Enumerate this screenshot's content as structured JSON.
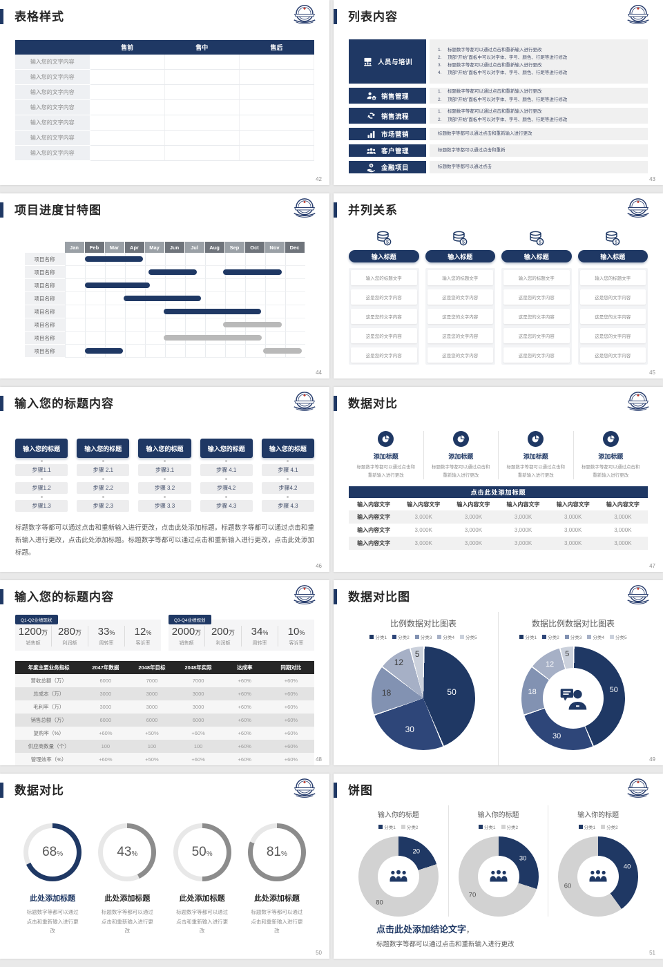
{
  "colors": {
    "navy": "#1f3864",
    "gantt_gray_bar": "#b9b9b9",
    "table_header_dark": "#262626",
    "pie_palette": [
      "#1f3864",
      "#2e4679",
      "#8292b2",
      "#a6b0c6",
      "#cbd1dc"
    ],
    "donut_gray": "#d2d2d2",
    "gauge_gray": "#8c8c8c",
    "gauge_track": "#e8e8e8"
  },
  "slides": {
    "s42": {
      "number": "42",
      "title": "表格样式",
      "table": {
        "headers": [
          "",
          "售前",
          "售中",
          "售后"
        ],
        "row_label": "输入您的文字内容",
        "row_count": 7
      }
    },
    "s43": {
      "number": "43",
      "title": "列表内容",
      "items": [
        {
          "icon": "training-icon",
          "label": "人员与培训",
          "numbered": true,
          "lines": [
            "标题数字等都可以通过点击和重新输入进行更改",
            "顶部“开始”面板中可以对字体、字号、颜色、行距等进行修改",
            "标题数字等都可以通过点击和重新输入进行更改",
            "顶部“开始”面板中可以对字体、字号、颜色、行距等进行修改"
          ]
        },
        {
          "icon": "sales-management-icon",
          "label": "销售管理",
          "numbered": true,
          "lines": [
            "标题数字等都可以通过点击和重新输入进行更改",
            "顶部“开始”面板中可以对字体、字号、颜色、行距等进行修改"
          ]
        },
        {
          "icon": "sales-process-icon",
          "label": "销售流程",
          "numbered": true,
          "lines": [
            "标题数字等都可以通过点击和重新输入进行更改",
            "顶部“开始”面板中可以对字体、字号、颜色、行距等进行修改"
          ]
        },
        {
          "icon": "marketing-icon",
          "label": "市场营销",
          "numbered": false,
          "lines": [
            "标题数字等都可以通过点击和重新输入进行更改"
          ]
        },
        {
          "icon": "customer-management-icon",
          "label": "客户管理",
          "numbered": false,
          "lines": [
            "标题数字等都可以通过点击和重新"
          ]
        },
        {
          "icon": "finance-icon",
          "label": "金融项目",
          "numbered": false,
          "lines": [
            "标题数字等都可以通过点击"
          ]
        }
      ]
    },
    "s44": {
      "number": "44",
      "title": "项目进度甘特图",
      "chart_data": {
        "type": "gantt",
        "months": [
          "Jan",
          "Feb",
          "Mar",
          "Apr",
          "May",
          "Jun",
          "Jul",
          "Aug",
          "Sep",
          "Oct",
          "Nov",
          "Dec"
        ],
        "row_label": "项目名称",
        "row_count": 8,
        "bars": [
          {
            "row": 0,
            "start": 1.0,
            "end": 3.9,
            "color": "navy"
          },
          {
            "row": 1,
            "start": 4.2,
            "end": 6.6,
            "color": "navy"
          },
          {
            "row": 1,
            "start": 7.9,
            "end": 10.85,
            "color": "navy"
          },
          {
            "row": 2,
            "start": 1.0,
            "end": 4.25,
            "color": "navy"
          },
          {
            "row": 3,
            "start": 2.95,
            "end": 6.8,
            "color": "navy"
          },
          {
            "row": 4,
            "start": 4.95,
            "end": 9.8,
            "color": "navy"
          },
          {
            "row": 5,
            "start": 7.9,
            "end": 10.85,
            "color": "gray"
          },
          {
            "row": 6,
            "start": 4.95,
            "end": 9.85,
            "color": "gray"
          },
          {
            "row": 7,
            "start": 1.0,
            "end": 2.9,
            "color": "navy"
          },
          {
            "row": 7,
            "start": 9.9,
            "end": 11.85,
            "color": "gray"
          }
        ]
      }
    },
    "s45": {
      "number": "45",
      "title": "并列关系",
      "columns": [
        {
          "icon": "coins-icon",
          "pill": "输入标题",
          "cards": [
            "输入您的标题文字",
            "这是您的文字内容",
            "这是您的文字内容",
            "这是您的文字内容",
            "这是您的文字内容"
          ]
        },
        {
          "icon": "coins-icon",
          "pill": "输入标题",
          "cards": [
            "输入您的标题文字",
            "这是您的文字内容",
            "这是您的文字内容",
            "这是您的文字内容",
            "这是您的文字内容"
          ]
        },
        {
          "icon": "coins-icon",
          "pill": "输入标题",
          "cards": [
            "输入您的标题文字",
            "这是您的文字内容",
            "这是您的文字内容",
            "这是您的文字内容",
            "这是您的文字内容"
          ]
        },
        {
          "icon": "coins-icon",
          "pill": "输入标题",
          "cards": [
            "输入您的标题文字",
            "这是您的文字内容",
            "这是您的文字内容",
            "这是您的文字内容",
            "这是您的文字内容"
          ]
        }
      ]
    },
    "s46": {
      "number": "46",
      "title": "输入您的标题内容",
      "columns": [
        {
          "header": "输入您的标题",
          "steps": [
            "步骤1.1",
            "步骤1.2",
            "步骤1.3"
          ]
        },
        {
          "header": "输入您的标题",
          "steps": [
            "步骤 2.1",
            "步骤 2.2",
            "步骤 2.3"
          ]
        },
        {
          "header": "输入您的标题",
          "steps": [
            "步骤3.1",
            "步骤 3.2",
            "步骤 3.3"
          ]
        },
        {
          "header": "输入您的标题",
          "steps": [
            "步骤 4.1",
            "步骤4.2",
            "步骤 4.3"
          ]
        },
        {
          "header": "输入您的标题",
          "steps": [
            "步骤 4.1",
            "步骤4.2",
            "步骤 4.3"
          ]
        }
      ],
      "paragraph": "标题数字等都可以通过点击和重新输入进行更改，点击此处添加标题。标题数字等都可以通过点击和重新输入进行更改，点击此处添加标题。标题数字等都可以通过点击和重新输入进行更改，点击此处添加标题。"
    },
    "s47": {
      "number": "47",
      "title": "数据对比",
      "features": [
        {
          "icon": "pie-chart-icon",
          "title": "添加标题",
          "desc": "标题数字等都可以通过点击和重新输入进行更改"
        },
        {
          "icon": "pie-chart-icon",
          "title": "添加标题",
          "desc": "标题数字等都可以通过点击和重新输入进行更改"
        },
        {
          "icon": "pie-chart-icon",
          "title": "添加标题",
          "desc": "标题数字等都可以通过点击和重新输入进行更改"
        },
        {
          "icon": "pie-chart-icon",
          "title": "添加标题",
          "desc": "标题数字等都可以通过点击和重新输入进行更改"
        }
      ],
      "banner": "点击此处添加标题",
      "table": {
        "headers": [
          "输入内容文字",
          "输入内容文字",
          "输入内容文字",
          "输入内容文字",
          "输入内容文字",
          "输入内容文字"
        ],
        "rows": [
          [
            "输入内容文字",
            "3,000K",
            "3,000K",
            "3,000K",
            "3,000K",
            "3,000K"
          ],
          [
            "输入内容文字",
            "3,000K",
            "3,000K",
            "3,000K",
            "3,000K",
            "3,000K"
          ],
          [
            "输入内容文字",
            "3,000K",
            "3,000K",
            "3,000K",
            "3,000K",
            "3,000K"
          ]
        ]
      }
    },
    "s48": {
      "number": "48",
      "title": "输入您的标题内容",
      "panels": [
        {
          "tag": "Q1-Q2业绩现状",
          "stats": [
            {
              "value": "1200",
              "unit": "万",
              "label": "销售额"
            },
            {
              "value": "280",
              "unit": "万",
              "label": "利润额"
            },
            {
              "value": "33",
              "unit": "%",
              "label": "周转率"
            },
            {
              "value": "12",
              "unit": "%",
              "label": "客诉率"
            }
          ]
        },
        {
          "tag": "Q3-Q4业绩规划",
          "stats": [
            {
              "value": "2000",
              "unit": "万",
              "label": "销售额"
            },
            {
              "value": "200",
              "unit": "万",
              "label": "利润额"
            },
            {
              "value": "34",
              "unit": "%",
              "label": "周转率"
            },
            {
              "value": "10",
              "unit": "%",
              "label": "客诉率"
            }
          ]
        }
      ],
      "table": {
        "headers": [
          "年度主要业务指标",
          "2047年数据",
          "2048年目标",
          "2048年实际",
          "达成率",
          "同期对比"
        ],
        "rows": [
          [
            "营收总额（万）",
            "6000",
            "7000",
            "7000",
            "+60%",
            "+60%"
          ],
          [
            "总成本（万）",
            "3000",
            "3000",
            "3000",
            "+60%",
            "+60%"
          ],
          [
            "毛利率（万）",
            "3000",
            "3000",
            "3000",
            "+60%",
            "+60%"
          ],
          [
            "销售总额（万）",
            "6000",
            "6000",
            "6000",
            "+60%",
            "+60%"
          ],
          [
            "复购率（%）",
            "+60%",
            "+50%",
            "+60%",
            "+60%",
            "+60%"
          ],
          [
            "供应商数量（个）",
            "100",
            "100",
            "100",
            "+60%",
            "+60%"
          ],
          [
            "管理效率（%）",
            "+60%",
            "+50%",
            "+60%",
            "+60%",
            "+60%"
          ]
        ]
      }
    },
    "s49": {
      "number": "49",
      "title": "数据对比图",
      "charts": [
        {
          "type": "pie",
          "title": "比例数据对比图表",
          "legend": [
            "分类1",
            "分类2",
            "分类3",
            "分类4",
            "分类5"
          ],
          "values": [
            50,
            30,
            18,
            12,
            5
          ]
        },
        {
          "type": "donut",
          "title": "数据比例数据对比图表",
          "legend": [
            "分类1",
            "分类2",
            "分类3",
            "分类4",
            "分类5"
          ],
          "values": [
            50,
            30,
            18,
            12,
            5
          ],
          "center_icon": "consultant-icon"
        }
      ]
    },
    "s50": {
      "number": "50",
      "title": "数据对比",
      "gauges": [
        {
          "percent": 68,
          "accent": true,
          "title": "此处添加标题",
          "desc": "标题数字等都可以通过点击和重新输入进行更改"
        },
        {
          "percent": 43,
          "accent": false,
          "title": "此处添加标题",
          "desc": "标题数字等都可以通过点击和重新输入进行更改"
        },
        {
          "percent": 50,
          "accent": false,
          "title": "此处添加标题",
          "desc": "标题数字等都可以通过点击和重新输入进行更改"
        },
        {
          "percent": 81,
          "accent": false,
          "title": "此处添加标题",
          "desc": "标题数字等都可以通过点击和重新输入进行更改"
        }
      ]
    },
    "s51": {
      "number": "51",
      "title": "饼图",
      "charts": [
        {
          "type": "donut",
          "title": "输入你的标题",
          "legend": [
            "分类1",
            "分类2"
          ],
          "values": [
            20,
            80
          ],
          "center_icon": "people-group-icon"
        },
        {
          "type": "donut",
          "title": "输入你的标题",
          "legend": [
            "分类1",
            "分类2"
          ],
          "values": [
            30,
            70
          ],
          "center_icon": "people-group-icon"
        },
        {
          "type": "donut",
          "title": "输入你的标题",
          "legend": [
            "分类1",
            "分类2"
          ],
          "values": [
            40,
            60
          ],
          "center_icon": "people-group-icon"
        }
      ],
      "conclusion": "点击此处添加结论文字",
      "conclusion_comma": "，",
      "note": "标题数字等都可以通过点击和重新输入进行更改"
    }
  }
}
